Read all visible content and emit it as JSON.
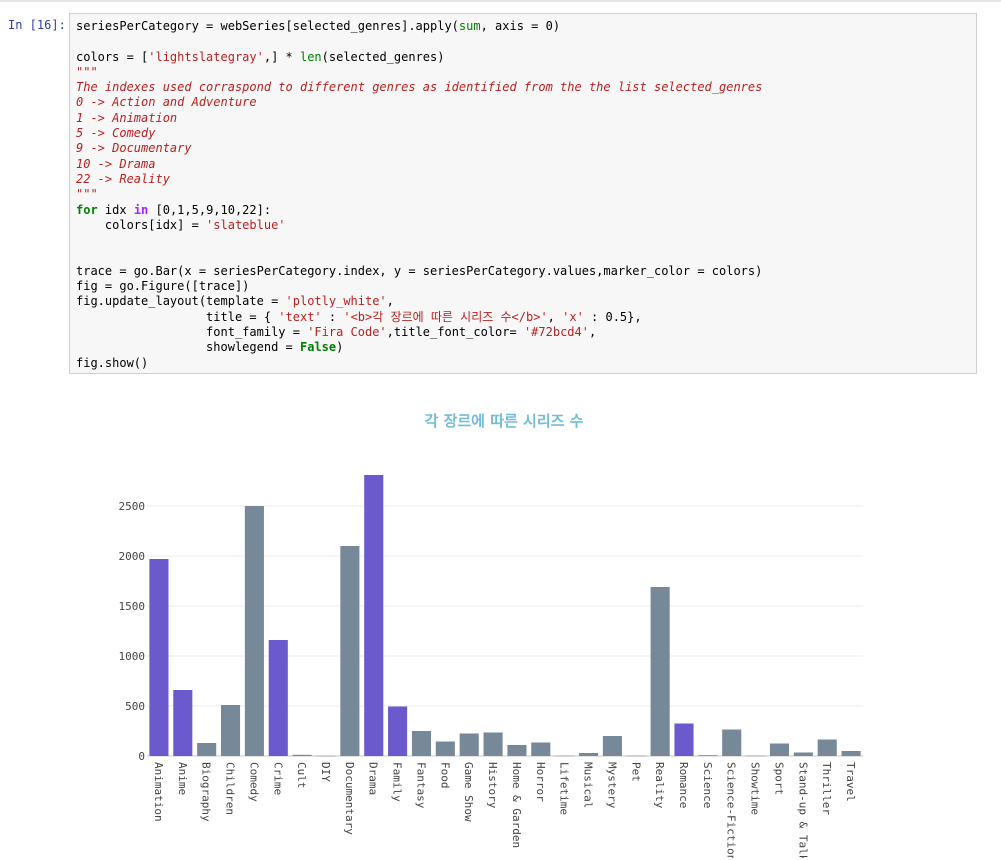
{
  "cell": {
    "prompt": "In [16]:",
    "code_lines": [
      [
        {
          "t": "seriesPerCategory = webSeries[selected_genres].apply("
        },
        {
          "t": "sum",
          "c": "bi"
        },
        {
          "t": ", axis = 0)"
        }
      ],
      [
        {
          "t": ""
        }
      ],
      [
        {
          "t": "colors = ["
        },
        {
          "t": "'lightslategray'",
          "c": "str"
        },
        {
          "t": ",] * "
        },
        {
          "t": "len",
          "c": "bi"
        },
        {
          "t": "(selected_genres)"
        }
      ],
      [
        {
          "t": "\"\"\"",
          "c": "cmt"
        }
      ],
      [
        {
          "t": "The indexes used corraspond to different genres as identified from the the list selected_genres",
          "c": "cmt"
        }
      ],
      [
        {
          "t": "0 -> Action and Adventure",
          "c": "cmt"
        }
      ],
      [
        {
          "t": "1 -> Animation",
          "c": "cmt"
        }
      ],
      [
        {
          "t": "5 -> Comedy",
          "c": "cmt"
        }
      ],
      [
        {
          "t": "9 -> Documentary",
          "c": "cmt"
        }
      ],
      [
        {
          "t": "10 -> Drama",
          "c": "cmt"
        }
      ],
      [
        {
          "t": "22 -> Reality",
          "c": "cmt"
        }
      ],
      [
        {
          "t": "\"\"\"",
          "c": "cmt"
        }
      ],
      [
        {
          "t": "for",
          "c": "kw"
        },
        {
          "t": " idx "
        },
        {
          "t": "in",
          "c": "op"
        },
        {
          "t": " [0,1,5,9,10,22]:"
        }
      ],
      [
        {
          "t": "    colors[idx] = "
        },
        {
          "t": "'slateblue'",
          "c": "str"
        }
      ],
      [
        {
          "t": ""
        }
      ],
      [
        {
          "t": ""
        }
      ],
      [
        {
          "t": "trace = go.Bar(x = seriesPerCategory.index, y = seriesPerCategory.values,marker_color = colors)"
        }
      ],
      [
        {
          "t": "fig = go.Figure([trace])"
        }
      ],
      [
        {
          "t": "fig.update_layout(template = "
        },
        {
          "t": "'plotly_white'",
          "c": "str"
        },
        {
          "t": ","
        }
      ],
      [
        {
          "t": "                  title = { "
        },
        {
          "t": "'text'",
          "c": "str"
        },
        {
          "t": " : "
        },
        {
          "t": "'<b>각 장르에 따른 시리즈 수</b>'",
          "c": "str"
        },
        {
          "t": ", "
        },
        {
          "t": "'x'",
          "c": "str"
        },
        {
          "t": " : 0.5},"
        }
      ],
      [
        {
          "t": "                  font_family = "
        },
        {
          "t": "'Fira Code'",
          "c": "str"
        },
        {
          "t": ",title_font_color= "
        },
        {
          "t": "'#72bcd4'",
          "c": "str"
        },
        {
          "t": ","
        }
      ],
      [
        {
          "t": "                  showlegend = "
        },
        {
          "t": "False",
          "c": "kw"
        },
        {
          "t": ")"
        }
      ],
      [
        {
          "t": "fig.show()"
        }
      ]
    ]
  },
  "chart_data": {
    "type": "bar",
    "title": "각 장르에 따른 시리즈 수",
    "title_color": "#72bcd4",
    "colors": {
      "highlight": "#6a5acd",
      "default": "#778899"
    },
    "ylim": [
      0,
      2830
    ],
    "yticks": [
      0,
      500,
      1000,
      1500,
      2000,
      2500
    ],
    "categories": [
      "Animation",
      "Anime",
      "Biography",
      "Children",
      "Comedy",
      "Crime",
      "Cult",
      "DIY",
      "Documentary",
      "Drama",
      "Family",
      "Fantasy",
      "Food",
      "Game Show",
      "History",
      "Home & Garden",
      "Horror",
      "Lifetime",
      "Musical",
      "Mystery",
      "Pet",
      "Reality",
      "Romance",
      "Science",
      "Science-Fiction",
      "Showtime",
      "Sport",
      "Stand-up & Talk",
      "Thriller",
      "Travel"
    ],
    "values": [
      1970,
      660,
      130,
      510,
      2500,
      1160,
      12,
      2,
      2100,
      2810,
      495,
      250,
      145,
      225,
      235,
      110,
      135,
      3,
      30,
      200,
      3,
      1690,
      325,
      8,
      265,
      3,
      125,
      35,
      165,
      50
    ],
    "highlight": [
      true,
      true,
      false,
      false,
      false,
      true,
      false,
      false,
      false,
      true,
      true,
      false,
      false,
      false,
      false,
      false,
      false,
      false,
      false,
      false,
      false,
      false,
      true,
      false,
      false,
      false,
      false,
      false,
      false,
      false
    ],
    "showlegend": false,
    "grid": true
  }
}
